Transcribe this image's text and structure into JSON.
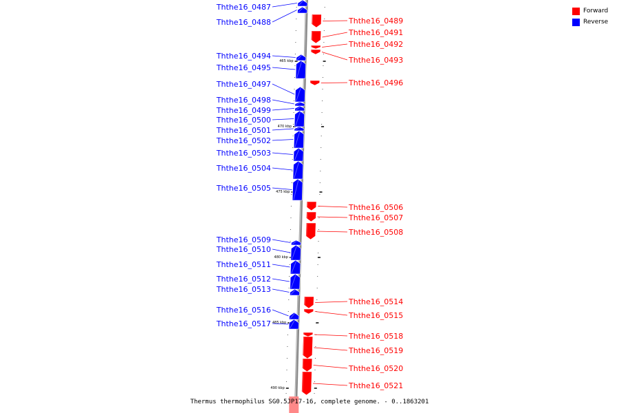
{
  "colors": {
    "forward": "#ff0000",
    "reverse": "#0000ff"
  },
  "legend": {
    "forward": "Forward",
    "reverse": "Reverse"
  },
  "caption": "Thermus thermophilus SG0.5JP17-16, complete genome. - 0..1863201",
  "ticks": [
    {
      "label": "465 kbp",
      "kbp": 465
    },
    {
      "label": "470 kbp",
      "kbp": 470
    },
    {
      "label": "475 kbp",
      "kbp": 475
    },
    {
      "label": "480 kbp",
      "kbp": 480
    },
    {
      "label": "485 kbp",
      "kbp": 485
    },
    {
      "label": "490 kbp",
      "kbp": 490
    }
  ],
  "genes": [
    {
      "id": "Ththe16_0487",
      "strand": "reverse"
    },
    {
      "id": "Ththe16_0488",
      "strand": "reverse"
    },
    {
      "id": "Ththe16_0489",
      "strand": "forward"
    },
    {
      "id": "Ththe16_0491",
      "strand": "forward"
    },
    {
      "id": "Ththe16_0492",
      "strand": "forward"
    },
    {
      "id": "Ththe16_0493",
      "strand": "forward"
    },
    {
      "id": "Ththe16_0494",
      "strand": "reverse"
    },
    {
      "id": "Ththe16_0495",
      "strand": "reverse"
    },
    {
      "id": "Ththe16_0496",
      "strand": "forward"
    },
    {
      "id": "Ththe16_0497",
      "strand": "reverse"
    },
    {
      "id": "Ththe16_0498",
      "strand": "reverse"
    },
    {
      "id": "Ththe16_0499",
      "strand": "reverse"
    },
    {
      "id": "Ththe16_0500",
      "strand": "reverse"
    },
    {
      "id": "Ththe16_0501",
      "strand": "reverse"
    },
    {
      "id": "Ththe16_0502",
      "strand": "reverse"
    },
    {
      "id": "Ththe16_0503",
      "strand": "reverse"
    },
    {
      "id": "Ththe16_0504",
      "strand": "reverse"
    },
    {
      "id": "Ththe16_0505",
      "strand": "reverse"
    },
    {
      "id": "Ththe16_0506",
      "strand": "forward"
    },
    {
      "id": "Ththe16_0507",
      "strand": "forward"
    },
    {
      "id": "Ththe16_0508",
      "strand": "forward"
    },
    {
      "id": "Ththe16_0509",
      "strand": "reverse"
    },
    {
      "id": "Ththe16_0510",
      "strand": "reverse"
    },
    {
      "id": "Ththe16_0511",
      "strand": "reverse"
    },
    {
      "id": "Ththe16_0512",
      "strand": "reverse"
    },
    {
      "id": "Ththe16_0513",
      "strand": "reverse"
    },
    {
      "id": "Ththe16_0514",
      "strand": "forward"
    },
    {
      "id": "Ththe16_0515",
      "strand": "forward"
    },
    {
      "id": "Ththe16_0516",
      "strand": "reverse"
    },
    {
      "id": "Ththe16_0517",
      "strand": "reverse"
    },
    {
      "id": "Ththe16_0518",
      "strand": "forward"
    },
    {
      "id": "Ththe16_0519",
      "strand": "forward"
    },
    {
      "id": "Ththe16_0520",
      "strand": "forward"
    },
    {
      "id": "Ththe16_0521",
      "strand": "forward"
    }
  ]
}
